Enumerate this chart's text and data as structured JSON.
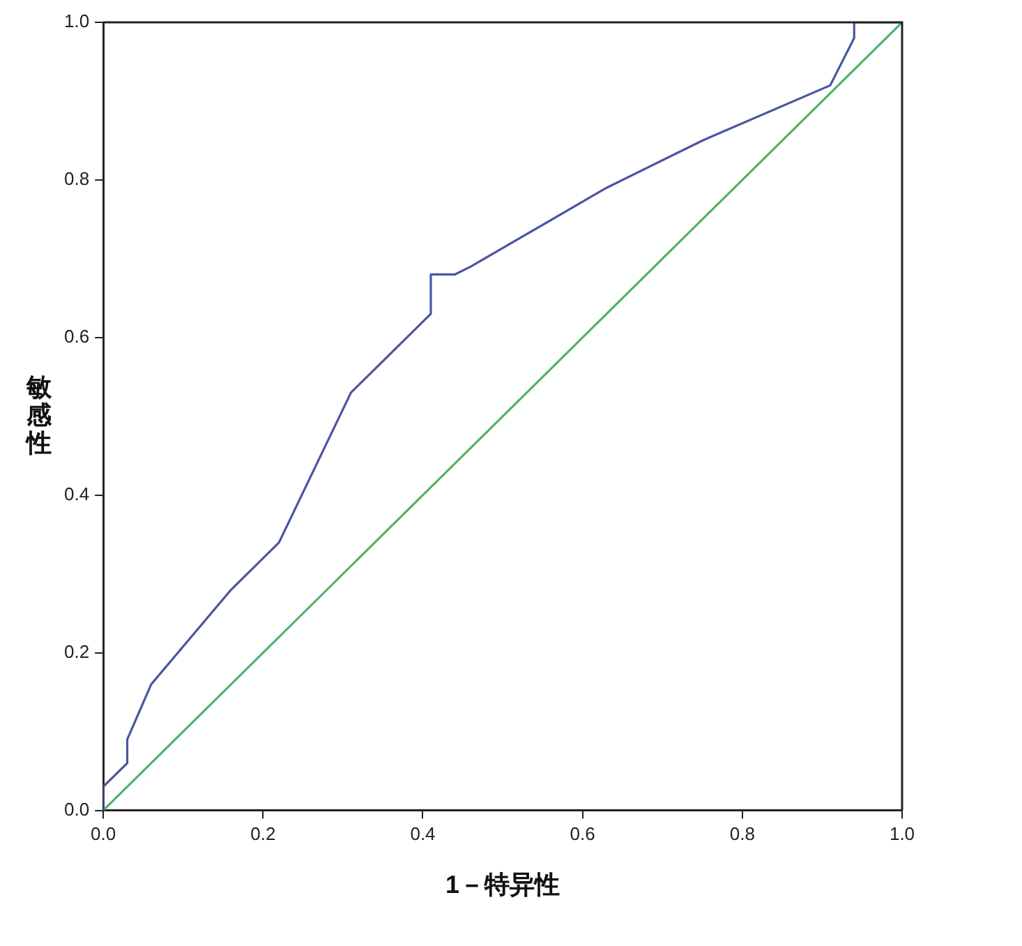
{
  "chart_data": {
    "type": "line",
    "xlabel": "1－特异性",
    "ylabel": "敏感性",
    "xlim": [
      0,
      1
    ],
    "ylim": [
      0,
      1
    ],
    "xticks": [
      {
        "value": 0,
        "label": "0.0"
      },
      {
        "value": 0.2,
        "label": "0.2"
      },
      {
        "value": 0.4,
        "label": "0.4"
      },
      {
        "value": 0.6,
        "label": "0.6"
      },
      {
        "value": 0.8,
        "label": "0.8"
      },
      {
        "value": 1,
        "label": "1.0"
      }
    ],
    "yticks": [
      {
        "value": 0,
        "label": "0.0"
      },
      {
        "value": 0.2,
        "label": "0.2"
      },
      {
        "value": 0.4,
        "label": "0.4"
      },
      {
        "value": 0.6,
        "label": "0.6"
      },
      {
        "value": 0.8,
        "label": "0.8"
      },
      {
        "value": 1,
        "label": "1.0"
      }
    ],
    "grid": false,
    "legend": false,
    "marker": "none",
    "line_style": "solid",
    "series": [
      {
        "color": "#4a55a2",
        "x": [
          0,
          0,
          0.03,
          0.03,
          0.06,
          0.16,
          0.22,
          0.31,
          0.37,
          0.41,
          0.41,
          0.44,
          0.46,
          0.63,
          0.75,
          0.91,
          0.94,
          0.94,
          1
        ],
        "values": [
          0,
          0.03,
          0.06,
          0.09,
          0.16,
          0.28,
          0.34,
          0.53,
          0.59,
          0.63,
          0.68,
          0.68,
          0.69,
          0.79,
          0.85,
          0.92,
          0.98,
          1,
          1
        ]
      },
      {
        "color": "#4fb36a",
        "x": [
          0,
          1
        ],
        "values": [
          0,
          1
        ]
      }
    ]
  }
}
